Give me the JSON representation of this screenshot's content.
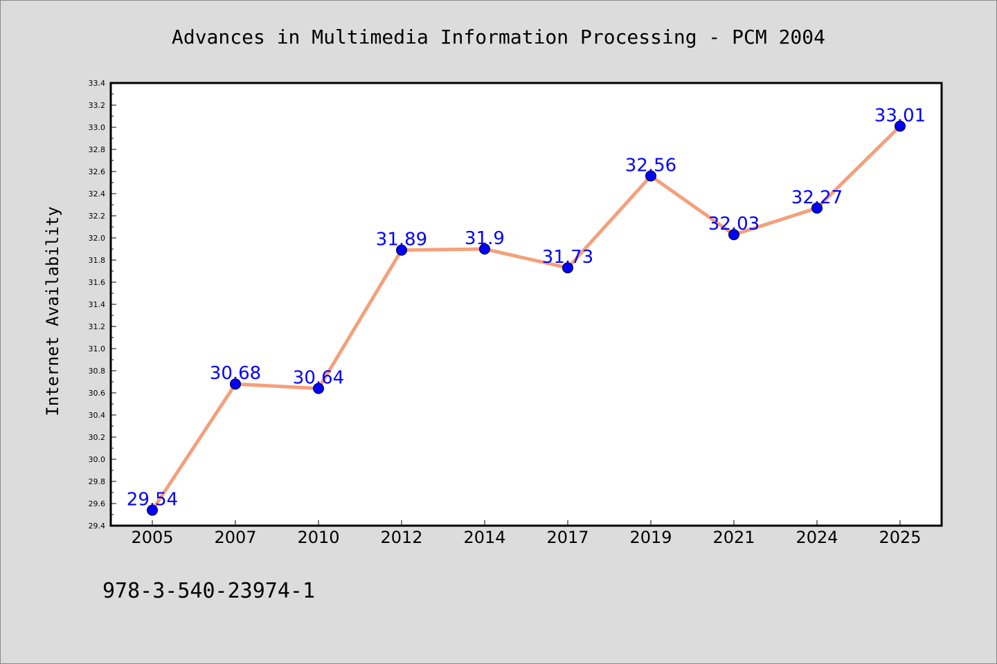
{
  "chart_data": {
    "type": "line",
    "title": "Advances in Multimedia Information Processing - PCM 2004",
    "xlabel": "",
    "ylabel": "Internet Availability",
    "categories": [
      "2005",
      "2007",
      "2010",
      "2012",
      "2014",
      "2017",
      "2019",
      "2021",
      "2024",
      "2025"
    ],
    "series": [
      {
        "values": [
          29.54,
          30.68,
          30.64,
          31.89,
          31.9,
          31.73,
          32.56,
          32.03,
          32.27,
          33.01
        ],
        "labels": [
          "29.54",
          "30.68",
          "30.64",
          "31.89",
          "31.9",
          "31.73",
          "32.56",
          "32.03",
          "32.27",
          "33.01"
        ]
      }
    ],
    "ylim": [
      29.4,
      33.4
    ],
    "yticks": [
      "29.4",
      "29.6",
      "29.8",
      "30.0",
      "30.2",
      "30.4",
      "30.6",
      "30.8",
      "31.0",
      "31.2",
      "31.4",
      "31.6",
      "31.8",
      "32.0",
      "32.2",
      "32.4",
      "32.6",
      "32.8",
      "33.0",
      "33.2",
      "33.4"
    ],
    "grid": false,
    "legend": "none"
  },
  "footer_text": "978-3-540-23974-1",
  "colors": {
    "background": "#dcdcdc",
    "plot_background": "#ffffff",
    "line": "#f4a07c",
    "marker": "#0000ff",
    "data_label": "#0000ff"
  }
}
